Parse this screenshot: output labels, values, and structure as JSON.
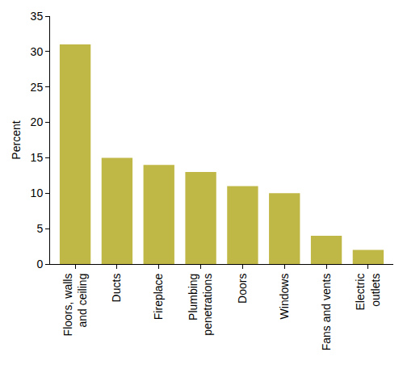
{
  "chart_data": {
    "type": "bar",
    "categories": [
      "Floors, walls and ceiling",
      "Ducts",
      "Fireplace",
      "Plumbing penetrations",
      "Doors",
      "Windows",
      "Fans and vents",
      "Electric outlets"
    ],
    "values": [
      31,
      15,
      14,
      13,
      11,
      10,
      4,
      2
    ],
    "color": "#c0b846",
    "y_label": "Percent",
    "ylim": [
      0,
      35
    ],
    "yticks": [
      0,
      5,
      10,
      15,
      20,
      25,
      30,
      35
    ],
    "grid": false
  }
}
